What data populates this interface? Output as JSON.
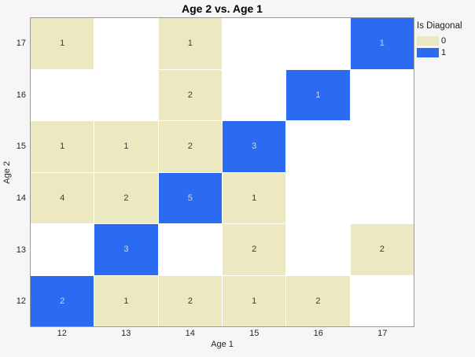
{
  "chart_data": {
    "type": "heatmap",
    "title": "Age 2 vs. Age 1",
    "xlabel": "Age 1",
    "ylabel": "Age 2",
    "x_categories": [
      "12",
      "13",
      "14",
      "15",
      "16",
      "17"
    ],
    "y_categories_top_to_bottom": [
      "17",
      "16",
      "15",
      "14",
      "13",
      "12"
    ],
    "legend": {
      "title": "Is Diagonal",
      "entries": [
        {
          "label": "0",
          "color": "#ECE9C0"
        },
        {
          "label": "1",
          "color": "#2B6BF2"
        }
      ]
    },
    "colors": {
      "off_diagonal": "#ECE9C0",
      "diagonal": "#2B6BF2",
      "label_on_off_diagonal": "#3C3C2E",
      "label_on_diagonal": "#D2DAE8",
      "empty_cell": "#FFFFFF",
      "plot_background": "#FFFFFF",
      "plot_border": "#9A9A9A",
      "window_background": "#F6F6F6"
    },
    "matrix_rows_top_to_bottom": [
      [
        {
          "v": "1",
          "d": 0
        },
        null,
        {
          "v": "1",
          "d": 0
        },
        null,
        null,
        {
          "v": "1",
          "d": 1
        }
      ],
      [
        null,
        null,
        {
          "v": "2",
          "d": 0
        },
        null,
        {
          "v": "1",
          "d": 1
        },
        null
      ],
      [
        {
          "v": "1",
          "d": 0
        },
        {
          "v": "1",
          "d": 0
        },
        {
          "v": "2",
          "d": 0
        },
        {
          "v": "3",
          "d": 1
        },
        null,
        null
      ],
      [
        {
          "v": "4",
          "d": 0
        },
        {
          "v": "2",
          "d": 0
        },
        {
          "v": "5",
          "d": 1
        },
        {
          "v": "1",
          "d": 0
        },
        null,
        null
      ],
      [
        null,
        {
          "v": "3",
          "d": 1
        },
        null,
        {
          "v": "2",
          "d": 0
        },
        null,
        {
          "v": "2",
          "d": 0
        }
      ],
      [
        {
          "v": "2",
          "d": 1
        },
        {
          "v": "1",
          "d": 0
        },
        {
          "v": "2",
          "d": 0
        },
        {
          "v": "1",
          "d": 0
        },
        {
          "v": "2",
          "d": 0
        },
        null
      ]
    ]
  }
}
